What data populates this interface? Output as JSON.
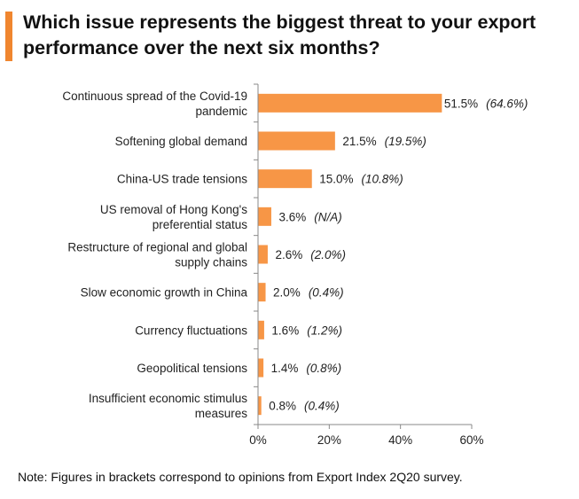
{
  "title": "Which issue represents the biggest threat to your export performance over the next six months?",
  "note": "Note:  Figures in brackets correspond to opinions from Export Index 2Q20 survey.",
  "colors": {
    "bar": "#f79646",
    "title_accent": "#f0862f"
  },
  "chart_data": {
    "type": "bar",
    "orientation": "horizontal",
    "categories": [
      [
        "Continuous spread of the Covid-19",
        "pandemic"
      ],
      [
        "Softening global demand"
      ],
      [
        "China-US trade tensions"
      ],
      [
        "US removal of Hong Kong's",
        "preferential status"
      ],
      [
        "Restructure of regional and global",
        "supply chains"
      ],
      [
        "Slow economic growth in China"
      ],
      [
        "Currency fluctuations"
      ],
      [
        "Geopolitical tensions"
      ],
      [
        "Insufficient economic stimulus",
        "measures"
      ]
    ],
    "values": [
      51.5,
      21.5,
      15.0,
      3.6,
      2.6,
      2.0,
      1.6,
      1.4,
      0.8
    ],
    "value_labels": [
      "51.5%",
      "21.5%",
      "15.0%",
      "3.6%",
      "2.6%",
      "2.0%",
      "1.6%",
      "1.4%",
      "0.8%"
    ],
    "previous_labels": [
      "(64.6%)",
      "(19.5%)",
      "(10.8%)",
      "(N/A)",
      "(2.0%)",
      "(0.4%)",
      "(1.2%)",
      "(0.8%)",
      "(0.4%)"
    ],
    "xlim": [
      0,
      60
    ],
    "xticks": [
      "0%",
      "20%",
      "40%",
      "60%"
    ],
    "grid": false,
    "legend": "none"
  }
}
